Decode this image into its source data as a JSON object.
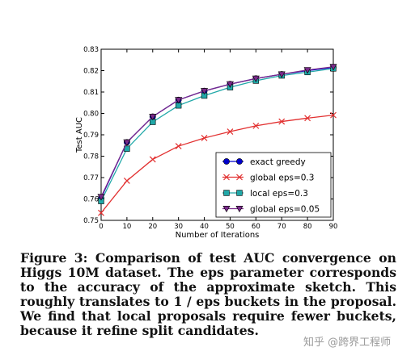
{
  "chart_data": {
    "type": "line",
    "xlabel": "Number of Iterations",
    "ylabel": "Test AUC",
    "xlim": [
      0,
      90
    ],
    "ylim": [
      0.75,
      0.83
    ],
    "xticks": [
      "0",
      "10",
      "20",
      "30",
      "40",
      "50",
      "60",
      "70",
      "80",
      "90"
    ],
    "yticks": [
      "0.75",
      "0.76",
      "0.77",
      "0.78",
      "0.79",
      "0.80",
      "0.81",
      "0.82",
      "0.83"
    ],
    "x": [
      0,
      10,
      20,
      30,
      40,
      50,
      60,
      70,
      80,
      90
    ],
    "legend_position": "lower-right",
    "grid": false,
    "series": [
      {
        "name": "exact greedy",
        "color": "#0000cc",
        "marker": "circle",
        "values": [
          0.7605,
          0.7865,
          0.7985,
          0.8063,
          0.8105,
          0.8137,
          0.8163,
          0.8183,
          0.82,
          0.8215
        ]
      },
      {
        "name": "global eps=0.3",
        "color": "#e23030",
        "marker": "x",
        "values": [
          0.7535,
          0.7685,
          0.7785,
          0.7847,
          0.7885,
          0.7915,
          0.7942,
          0.7962,
          0.7978,
          0.7992
        ]
      },
      {
        "name": "local eps=0.3",
        "color": "#20a8a8",
        "marker": "square",
        "values": [
          0.759,
          0.7835,
          0.796,
          0.8037,
          0.8083,
          0.8122,
          0.8153,
          0.8177,
          0.8193,
          0.821
        ]
      },
      {
        "name": "global eps=0.05",
        "color": "#7a2a8a",
        "marker": "triangle-down",
        "values": [
          0.761,
          0.7865,
          0.7985,
          0.8063,
          0.8105,
          0.8137,
          0.8163,
          0.8183,
          0.8203,
          0.8218
        ]
      }
    ]
  },
  "caption": {
    "lines": [
      "Figure 3: Comparison of test AUC convergence on",
      "Higgs 10M dataset. The eps parameter corresponds",
      "to the accuracy of the approximate sketch. This",
      "roughly translates to 1 / eps buckets in the proposal.",
      "We find that local proposals require fewer buckets,",
      "because it refine split candidates."
    ]
  },
  "watermark": "知乎 @跨界工程师"
}
